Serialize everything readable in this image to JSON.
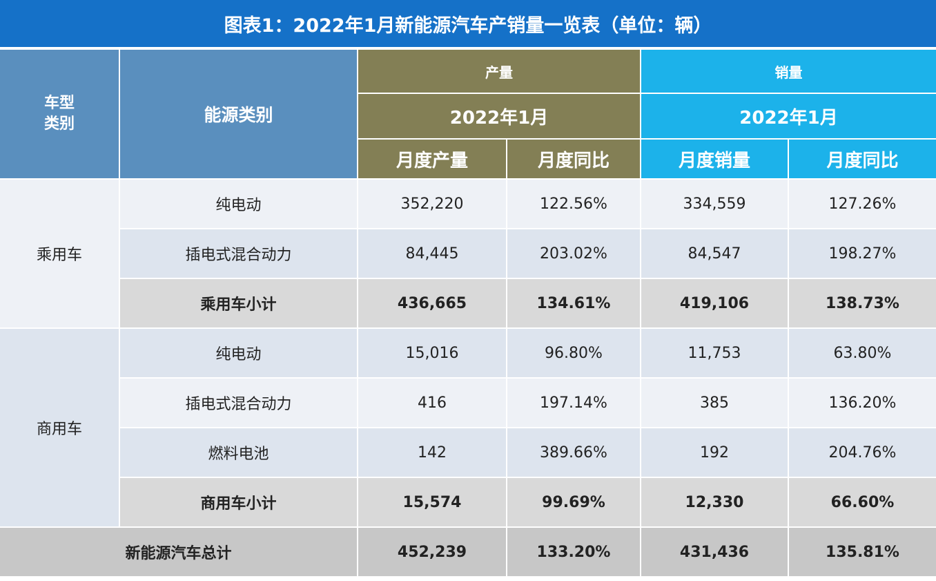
{
  "title": "图表1：2022年1月新能源汽车产销量一览表（单位：辆）",
  "header": {
    "vehicle_type": "车型类别",
    "energy_type": "能源类别",
    "production": "产量",
    "sales": "销量",
    "production_period": "2022年1月",
    "sales_period": "2022年1月",
    "monthly_production": "月度产量",
    "monthly_yoy_production": "月度同比",
    "monthly_sales": "月度销量",
    "monthly_yoy_sales": "月度同比"
  },
  "groups": [
    {
      "category": "乘用车",
      "rows": [
        {
          "energy": "纯电动",
          "production": "352,220",
          "prod_yoy": "122.56%",
          "sales": "334,559",
          "sales_yoy": "127.26%"
        },
        {
          "energy": "插电式混合动力",
          "production": "84,445",
          "prod_yoy": "203.02%",
          "sales": "84,547",
          "sales_yoy": "198.27%"
        },
        {
          "energy": "乘用车小计",
          "production": "436,665",
          "prod_yoy": "134.61%",
          "sales": "419,106",
          "sales_yoy": "138.73%"
        }
      ]
    },
    {
      "category": "商用车",
      "rows": [
        {
          "energy": "纯电动",
          "production": "15,016",
          "prod_yoy": "96.80%",
          "sales": "11,753",
          "sales_yoy": "63.80%"
        },
        {
          "energy": "插电式混合动力",
          "production": "416",
          "prod_yoy": "197.14%",
          "sales": "385",
          "sales_yoy": "136.20%"
        },
        {
          "energy": "燃料电池",
          "production": "142",
          "prod_yoy": "389.66%",
          "sales": "192",
          "sales_yoy": "204.76%"
        },
        {
          "energy": "商用车小计",
          "production": "15,574",
          "prod_yoy": "99.69%",
          "sales": "12,330",
          "sales_yoy": "66.60%"
        }
      ]
    }
  ],
  "total": {
    "label": "新能源汽车总计",
    "production": "452,239",
    "prod_yoy": "133.20%",
    "sales": "431,436",
    "sales_yoy": "135.81%"
  }
}
